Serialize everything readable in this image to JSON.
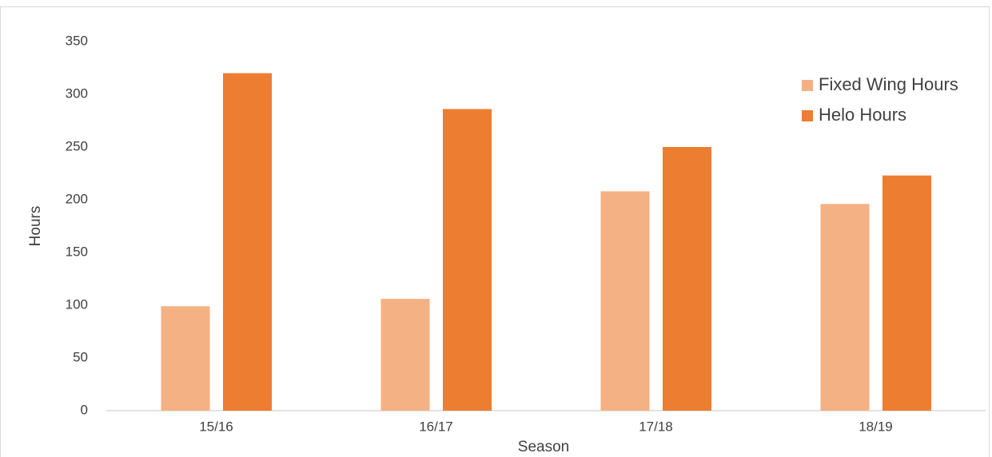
{
  "chart_data": {
    "type": "bar",
    "categories": [
      "15/16",
      "16/17",
      "17/18",
      "18/19"
    ],
    "series": [
      {
        "name": "Fixed Wing Hours",
        "color": "#f4b183",
        "values": [
          99,
          106,
          208,
          196
        ]
      },
      {
        "name": "Helo Hours",
        "color": "#ed7d31",
        "values": [
          320,
          286,
          250,
          223
        ]
      }
    ],
    "xlabel": "Season",
    "ylabel": "Hours",
    "ylim": [
      0,
      350
    ],
    "yticks": [
      0,
      50,
      100,
      150,
      200,
      250,
      300,
      350
    ],
    "grid": false,
    "legend": "upper right"
  }
}
